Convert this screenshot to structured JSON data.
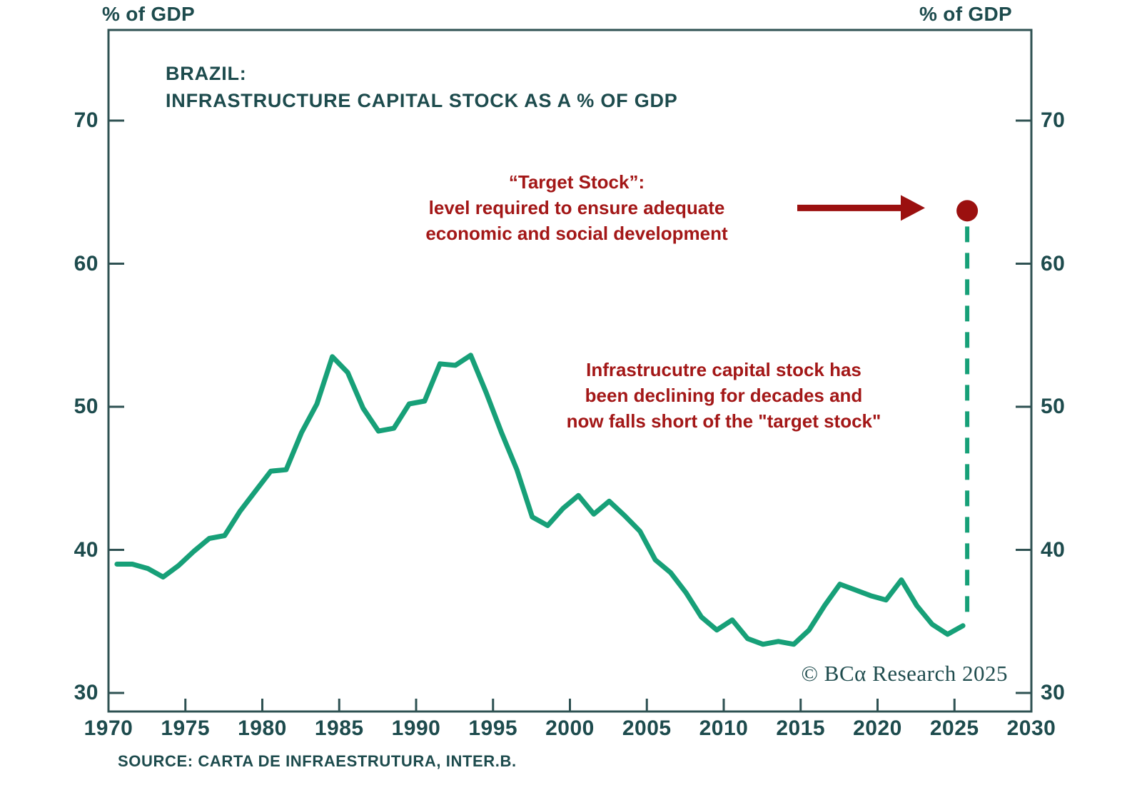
{
  "page": {
    "ylabel_left": "% of GDP",
    "ylabel_right": "% of GDP",
    "title_line1": "BRAZIL:",
    "title_line2": "INFRASTRUCTURE CAPITAL STOCK AS A % OF GDP",
    "copyright": "© BCα Research 2025",
    "source": "SOURCE: CARTA DE INFRAESTRUTURA, INTER.B."
  },
  "annotations": {
    "target": {
      "lines": [
        "“Target Stock”:",
        "level required to ensure adequate",
        "economic and social development"
      ]
    },
    "decline": {
      "lines": [
        "Infrastrucutre capital stock has",
        "been declining for decades and",
        "now falls short of the \"target stock\""
      ]
    }
  },
  "colors": {
    "line_green": "#17a078",
    "annotation_red": "#a31717",
    "marker_red": "#9b100f",
    "axis_teal": "#2e5152",
    "label_teal": "#1d4b4d"
  },
  "chart_data": {
    "type": "line",
    "title": "BRAZIL: INFRASTRUCTURE CAPITAL STOCK AS A % OF GDP",
    "ylabel": "% of GDP",
    "unit": "% of GDP",
    "grid": false,
    "legend_position": "none",
    "xlim": [
      1970,
      2030
    ],
    "xticks": [
      1970,
      1975,
      1980,
      1985,
      1990,
      1995,
      2000,
      2005,
      2010,
      2015,
      2020,
      2025,
      2030
    ],
    "yticks": [
      30,
      40,
      50,
      60,
      70
    ],
    "years": [
      1970,
      1971,
      1972,
      1973,
      1974,
      1975,
      1976,
      1977,
      1978,
      1979,
      1980,
      1981,
      1982,
      1983,
      1984,
      1985,
      1986,
      1987,
      1988,
      1989,
      1990,
      1991,
      1992,
      1993,
      1994,
      1995,
      1996,
      1997,
      1998,
      1999,
      2000,
      2001,
      2002,
      2003,
      2004,
      2005,
      2006,
      2007,
      2008,
      2009,
      2010,
      2011,
      2012,
      2013,
      2014,
      2015,
      2016,
      2017,
      2018,
      2019,
      2020,
      2021,
      2022,
      2023,
      2024,
      2025
    ],
    "series": [
      {
        "name": "Infrastructure capital stock (% of GDP)",
        "values": [
          39.0,
          39.0,
          38.7,
          38.1,
          38.9,
          39.9,
          40.8,
          41.0,
          42.7,
          44.1,
          45.5,
          45.6,
          48.2,
          50.2,
          53.5,
          52.4,
          49.9,
          48.3,
          48.5,
          50.2,
          50.4,
          53.0,
          52.9,
          53.6,
          51.0,
          48.2,
          45.6,
          42.3,
          41.7,
          42.9,
          43.8,
          42.5,
          43.4,
          42.4,
          41.3,
          39.3,
          38.4,
          37.0,
          35.3,
          34.4,
          35.1,
          33.8,
          33.4,
          33.6,
          33.4,
          34.4,
          36.1,
          37.6,
          37.2,
          36.8,
          36.5,
          37.9,
          36.1,
          34.8,
          34.1,
          34.7
        ]
      }
    ],
    "target_point": {
      "year": 2026,
      "value": 63.7,
      "label": "Target Stock"
    }
  }
}
